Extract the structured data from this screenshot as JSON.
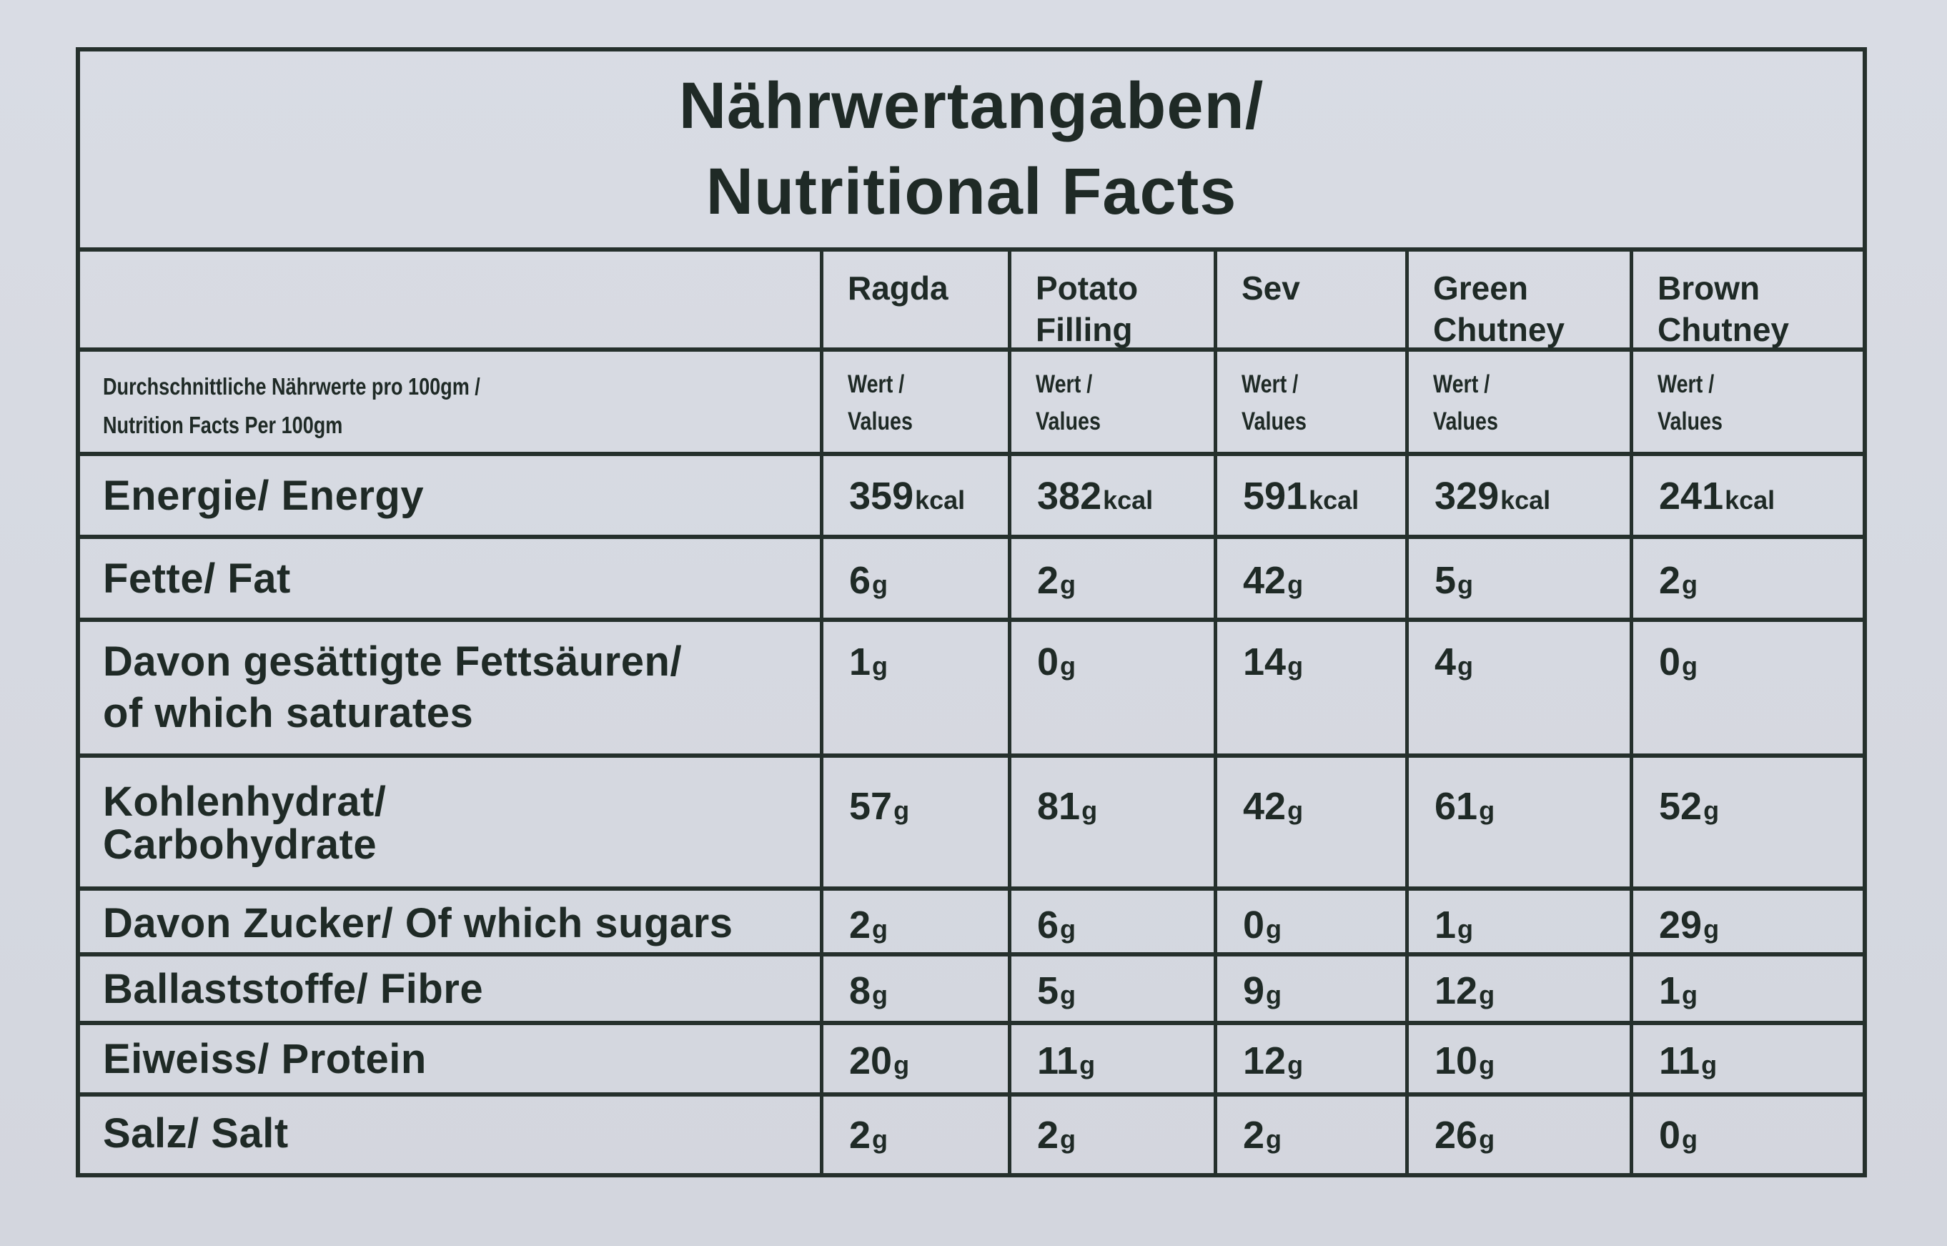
{
  "title": {
    "line1": "Nährwertangaben/",
    "line2": "Nutritional Facts"
  },
  "columns": [
    {
      "line1": "Ragda",
      "line2": ""
    },
    {
      "line1": "Potato",
      "line2": "Filling"
    },
    {
      "line1": "Sev",
      "line2": ""
    },
    {
      "line1": "Green",
      "line2": "Chutney"
    },
    {
      "line1": "Brown",
      "line2": "Chutney"
    }
  ],
  "subheader": {
    "label_line1": "Durchschnittliche Nährwerte pro 100gm /",
    "label_line2": "Nutrition Facts Per 100gm",
    "value_line1": "Wert /",
    "value_line2": "Values"
  },
  "rows": [
    {
      "label_line1": "Energie/ Energy",
      "label_line2": "",
      "values": [
        "359",
        "382",
        "591",
        "329",
        "241"
      ],
      "unit": "kcal"
    },
    {
      "label_line1": "Fette/ Fat",
      "label_line2": "",
      "values": [
        "6",
        "2",
        "42",
        "5",
        "2"
      ],
      "unit": "g"
    },
    {
      "label_line1": "Davon gesättigte Fettsäuren/",
      "label_line2": "of which saturates",
      "values": [
        "1",
        "0",
        "14",
        "4",
        "0"
      ],
      "unit": "g"
    },
    {
      "label_line1": "Kohlenhydrat/",
      "label_line2": "Carbohydrate",
      "values": [
        "57",
        "81",
        "42",
        "61",
        "52"
      ],
      "unit": "g"
    },
    {
      "label_line1": "Davon Zucker/ Of which sugars",
      "label_line2": "",
      "values": [
        "2",
        "6",
        "0",
        "1",
        "29"
      ],
      "unit": "g"
    },
    {
      "label_line1": "Ballaststoffe/ Fibre",
      "label_line2": "",
      "values": [
        "8",
        "5",
        "9",
        "12",
        "1"
      ],
      "unit": "g"
    },
    {
      "label_line1": "Eiweiss/ Protein",
      "label_line2": "",
      "values": [
        "20",
        "11",
        "12",
        "10",
        "11"
      ],
      "unit": "g"
    },
    {
      "label_line1": "Salz/ Salt",
      "label_line2": "",
      "values": [
        "2",
        "2",
        "2",
        "26",
        "0"
      ],
      "unit": "g"
    }
  ]
}
